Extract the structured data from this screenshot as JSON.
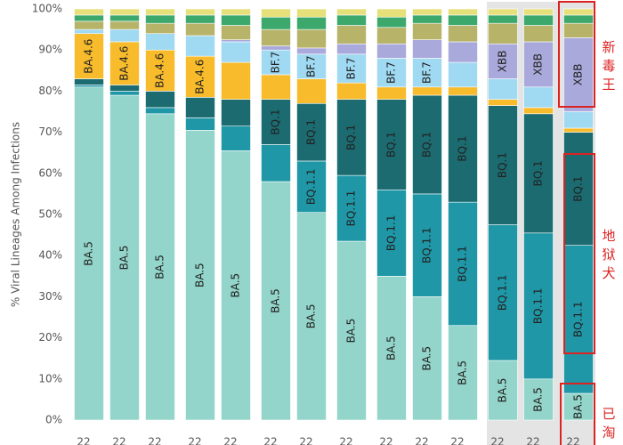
{
  "chart_data": {
    "type": "stacked_bar",
    "y_label": "% Viral Lineages Among Infections",
    "categories": [
      "22",
      "22",
      "22",
      "22",
      "22",
      "22",
      "22",
      "22",
      "22",
      "22",
      "22",
      "22",
      "22",
      "22"
    ],
    "ylim": [
      0,
      100
    ],
    "yticks": [
      {
        "value": 0,
        "label": "0%"
      },
      {
        "value": 10,
        "label": "10%"
      },
      {
        "value": 20,
        "label": "20%"
      },
      {
        "value": 30,
        "label": "30%"
      },
      {
        "value": 40,
        "label": "40%"
      },
      {
        "value": 50,
        "label": "50%"
      },
      {
        "value": 60,
        "label": "60%"
      },
      {
        "value": 70,
        "label": "70%"
      },
      {
        "value": 80,
        "label": "80%"
      },
      {
        "value": 90,
        "label": "90%"
      },
      {
        "value": 100,
        "label": "100%"
      }
    ],
    "series": [
      {
        "color": "#93d5ca",
        "values": [
          81,
          79,
          74.5,
          70.5,
          65.5,
          58,
          50.5,
          43.5,
          35,
          30,
          23,
          14.5,
          10,
          6.5
        ],
        "value_labels": [
          "BA.5",
          "BA.5",
          "BA.5",
          "BA.5",
          "BA.5",
          "BA.5",
          "BA.5",
          "BA.5",
          "BA.5",
          "BA.5",
          "BA.5",
          "BA.5",
          "BA.5",
          "BA.5"
        ]
      },
      {
        "color": "#1f97a6",
        "values": [
          0.5,
          1,
          1.5,
          3,
          6,
          9,
          12.5,
          16,
          21,
          25,
          30,
          33,
          35.5,
          36
        ],
        "value_labels": [
          null,
          null,
          null,
          null,
          null,
          null,
          "BQ.1.1",
          "BQ.1.1",
          "BQ.1.1",
          "BQ.1.1",
          "BQ.1.1",
          "BQ.1.1",
          "BQ.1.1",
          "BQ.1.1"
        ]
      },
      {
        "color": "#1b6b70",
        "values": [
          1.5,
          1.5,
          4,
          5,
          6.5,
          11,
          14,
          18.5,
          22,
          24,
          26,
          29,
          29,
          27.5
        ],
        "value_labels": [
          null,
          null,
          null,
          null,
          null,
          "BQ.1",
          "BQ.1",
          "BQ.1",
          "BQ.1",
          "BQ.1",
          "BQ.1",
          "BQ.1",
          "BQ.1",
          "BQ.1"
        ]
      },
      {
        "color": "#f7bb2c",
        "values": [
          11,
          10.5,
          10,
          10,
          9,
          6,
          6,
          4,
          3,
          2,
          2,
          1.5,
          1.5,
          1
        ],
        "value_labels": [
          "BA.4.6",
          "BA.4.6",
          "BA.4.6",
          "BA.4.6",
          null,
          null,
          null,
          null,
          null,
          null,
          null,
          null,
          null,
          null
        ]
      },
      {
        "color": "#9fd9f2",
        "values": [
          1,
          3,
          4,
          5,
          5,
          6,
          6,
          7,
          7,
          7,
          6,
          5,
          5,
          4
        ],
        "value_labels": [
          null,
          null,
          null,
          null,
          null,
          "BF.7",
          "BF.7",
          "BF.7",
          "BF.7",
          "BF.7",
          null,
          null,
          null,
          null
        ]
      },
      {
        "color": "#aaa9dc",
        "values": [
          0,
          0,
          0,
          0,
          0.5,
          1,
          1.5,
          2.5,
          3.5,
          4.5,
          5,
          8.5,
          11,
          18
        ],
        "value_labels": [
          null,
          null,
          null,
          null,
          null,
          null,
          null,
          null,
          null,
          null,
          null,
          "XBB",
          "XBB",
          "XBB"
        ]
      },
      {
        "color": "#b7b46a",
        "values": [
          2,
          2,
          2.5,
          3,
          3.5,
          4,
          4.5,
          4.5,
          4,
          4,
          4,
          5,
          4,
          3.5
        ]
      },
      {
        "color": "#3da86c",
        "values": [
          1.5,
          1.5,
          2,
          2,
          2.5,
          3,
          3,
          2.5,
          2.5,
          2,
          2.5,
          2,
          2.5,
          2
        ]
      },
      {
        "color": "#e6e07a",
        "values": [
          1.5,
          1.5,
          1.5,
          1.5,
          1.5,
          2,
          2,
          1.5,
          2,
          1.5,
          1.5,
          1.5,
          1.5,
          1.5
        ]
      }
    ],
    "annotations": [
      "新毒王",
      "地狱犬",
      "已淘"
    ]
  }
}
